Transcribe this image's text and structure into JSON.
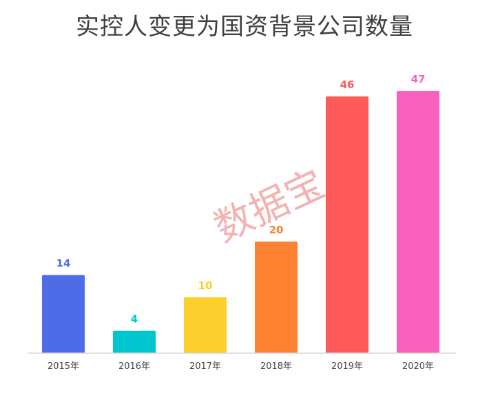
{
  "chart_data": {
    "type": "bar",
    "title": "实控人变更为国资背景公司数量",
    "xlabel": "",
    "ylabel": "",
    "categories": [
      "2015年",
      "2016年",
      "2017年",
      "2018年",
      "2019年",
      "2020年"
    ],
    "values": [
      14,
      4,
      10,
      20,
      46,
      47
    ],
    "colors": [
      "#4d6ce8",
      "#00c6d0",
      "#fdcf2c",
      "#fe8232",
      "#fe5a5a",
      "#fa60bd"
    ],
    "ylim": [
      0,
      47
    ],
    "grid": false,
    "legend": "none"
  },
  "watermark": {
    "text": "数据宝"
  }
}
